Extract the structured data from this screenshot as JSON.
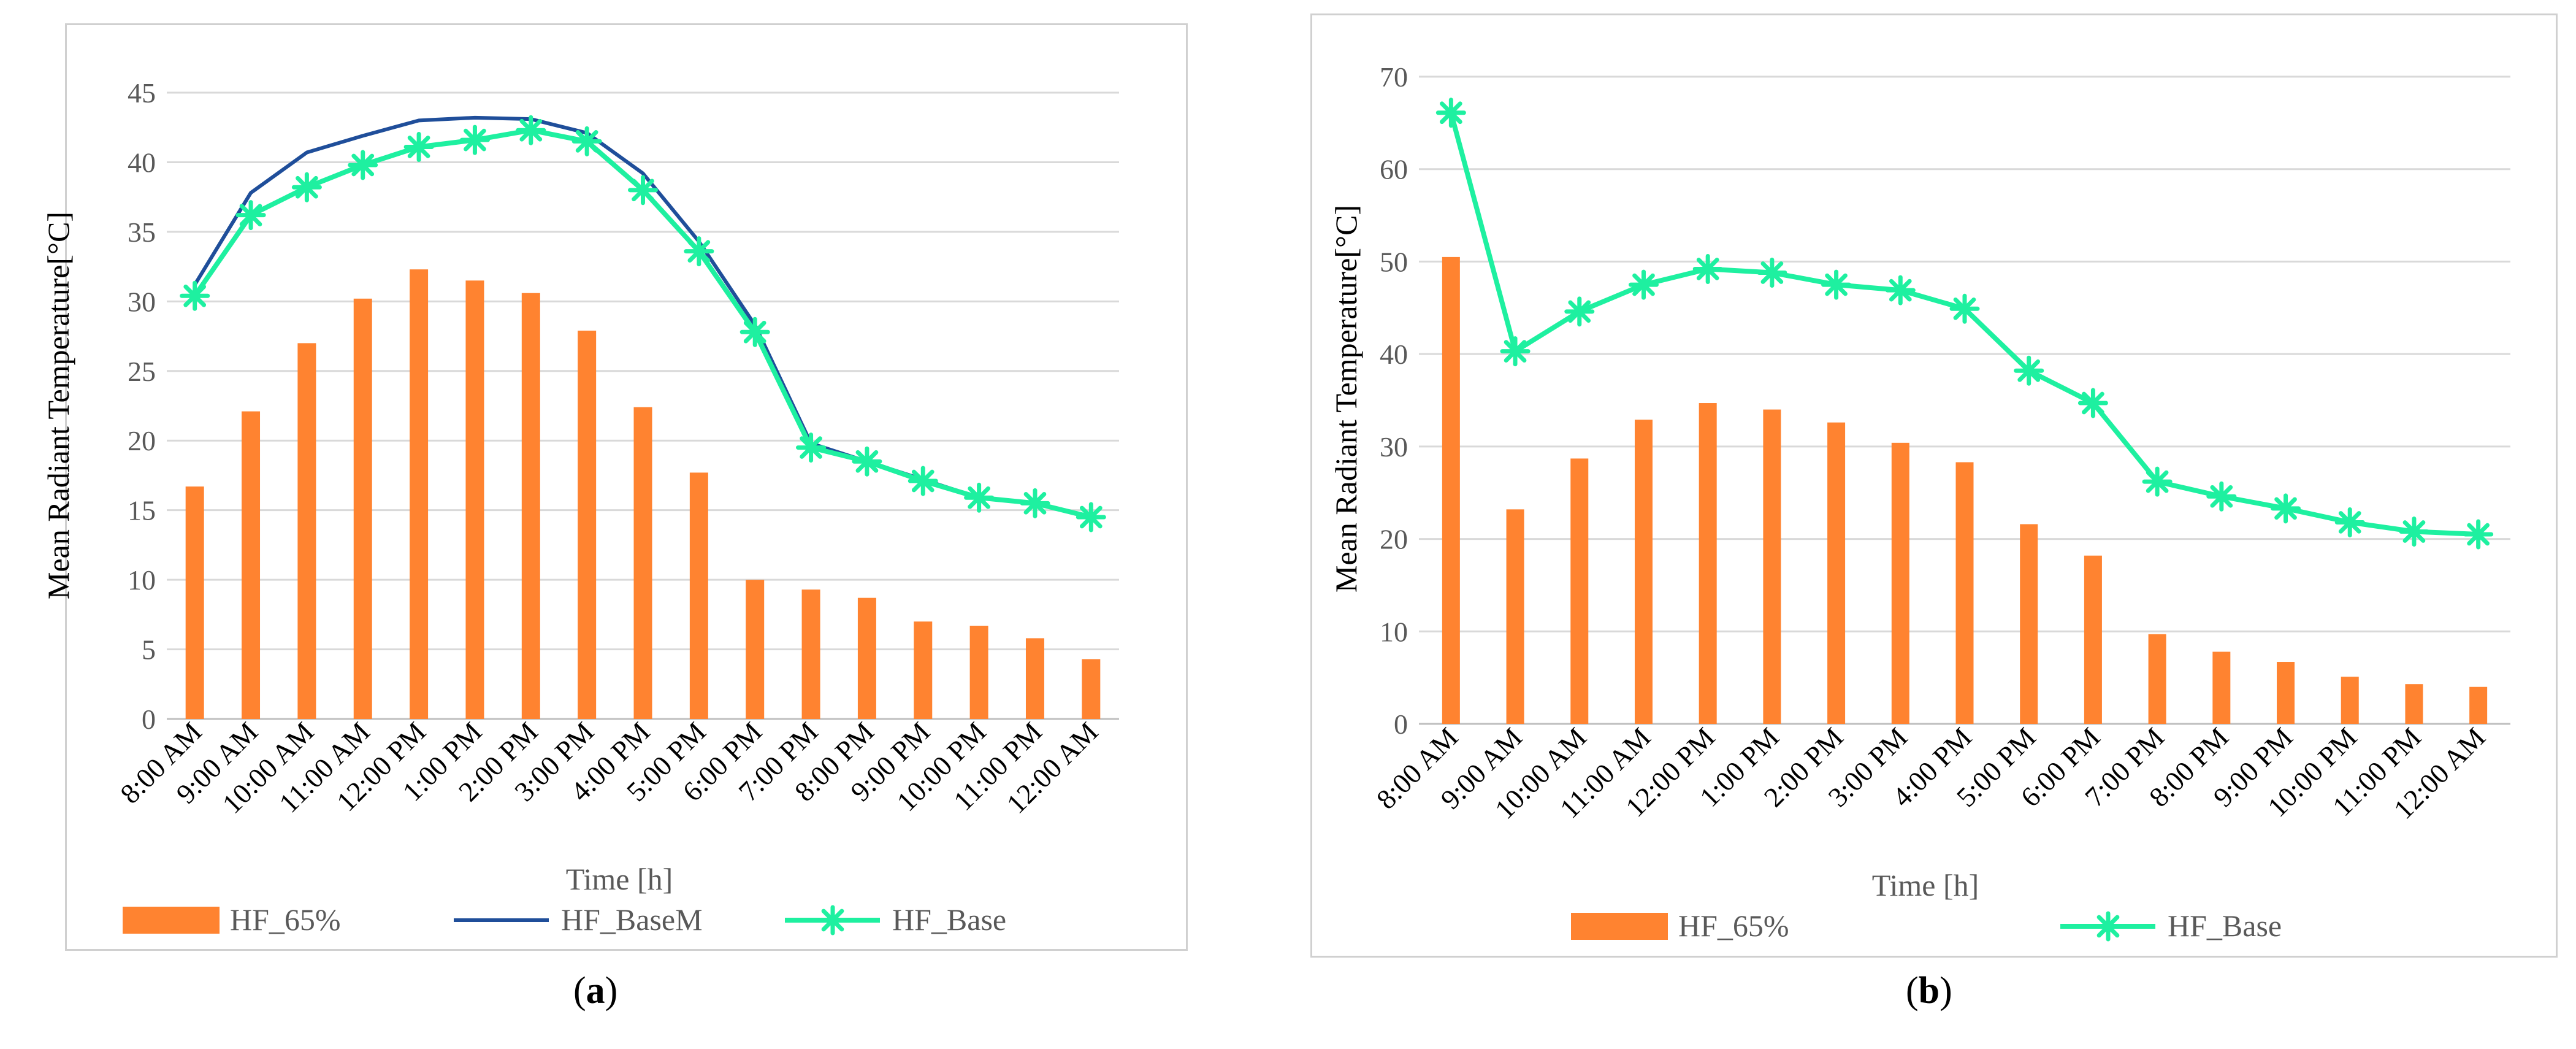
{
  "chart_data": [
    {
      "panel": "a",
      "type": "bar",
      "categories": [
        "8:00 AM",
        "9:00 AM",
        "10:00 AM",
        "11:00 AM",
        "12:00 PM",
        "1:00 PM",
        "2:00 PM",
        "3:00 PM",
        "4:00 PM",
        "5:00 PM",
        "6:00 PM",
        "7:00 PM",
        "8:00 PM",
        "9:00 PM",
        "10:00 PM",
        "11:00 PM",
        "12:00 AM"
      ],
      "series": [
        {
          "name": "HF_65%",
          "kind": "bar",
          "color": "#FF8330",
          "values": [
            16.7,
            22.1,
            27.0,
            30.2,
            32.3,
            31.5,
            30.6,
            27.9,
            22.4,
            17.7,
            10.0,
            9.3,
            8.7,
            7.0,
            6.7,
            5.8,
            4.3
          ]
        },
        {
          "name": "HF_BaseM",
          "kind": "line",
          "color": "#1F4E9A",
          "values": [
            31.2,
            37.8,
            40.7,
            41.9,
            43.0,
            43.2,
            43.1,
            42.1,
            39.2,
            34.3,
            28.3,
            19.8,
            18.5,
            17.2,
            15.9,
            15.5,
            14.5
          ]
        },
        {
          "name": "HF_Base",
          "kind": "line-marker",
          "color": "#1EF0A0",
          "values": [
            30.4,
            36.2,
            38.2,
            39.8,
            41.1,
            41.6,
            42.3,
            41.5,
            38.0,
            33.6,
            27.8,
            19.5,
            18.5,
            17.1,
            15.9,
            15.5,
            14.5
          ]
        }
      ],
      "title": "",
      "xlabel": "Time [h]",
      "ylabel": "Mean Radiant Temperature[°C]",
      "ylim": [
        0,
        45
      ],
      "yticks": [
        0,
        5,
        10,
        15,
        20,
        25,
        30,
        35,
        40,
        45
      ],
      "grid": true,
      "legend": "bottom"
    },
    {
      "panel": "b",
      "type": "bar",
      "categories": [
        "8:00 AM",
        "9:00 AM",
        "10:00 AM",
        "11:00 AM",
        "12:00 PM",
        "1:00 PM",
        "2:00 PM",
        "3:00 PM",
        "4:00 PM",
        "5:00 PM",
        "6:00 PM",
        "7:00 PM",
        "8:00 PM",
        "9:00 PM",
        "10:00 PM",
        "11:00 PM",
        "12:00 AM"
      ],
      "series": [
        {
          "name": "HF_65%",
          "kind": "bar",
          "color": "#FF8330",
          "values": [
            50.5,
            23.2,
            28.7,
            32.9,
            34.7,
            34.0,
            32.6,
            30.4,
            28.3,
            21.6,
            18.2,
            9.7,
            7.8,
            6.7,
            5.1,
            4.3,
            4.0
          ]
        },
        {
          "name": "HF_Base",
          "kind": "line-marker",
          "color": "#1EF0A0",
          "values": [
            66.1,
            40.3,
            44.6,
            47.5,
            49.2,
            48.8,
            47.5,
            46.9,
            44.9,
            38.2,
            34.7,
            26.2,
            24.6,
            23.3,
            21.8,
            20.8,
            20.5
          ]
        }
      ],
      "title": "",
      "xlabel": "Time [h]",
      "ylabel": "Mean Radiant Temperature[°C]",
      "ylim": [
        0,
        70
      ],
      "yticks": [
        0,
        10,
        20,
        30,
        40,
        50,
        60,
        70
      ],
      "grid": true,
      "legend": "bottom"
    }
  ],
  "panel_labels": {
    "a": "a",
    "b": "b"
  }
}
